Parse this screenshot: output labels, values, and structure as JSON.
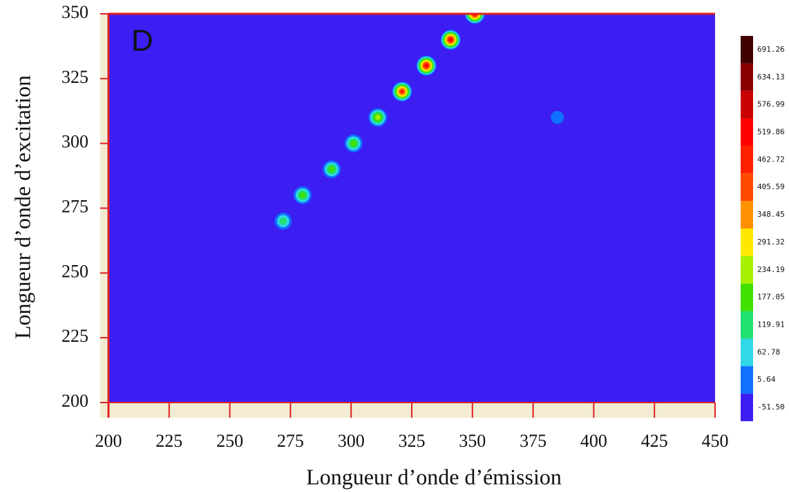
{
  "chart_data": {
    "type": "contour",
    "panel_label": "D",
    "x_label": "Longueur d’onde d’émission",
    "y_label": "Longueur d’onde d’excitation",
    "xlim": [
      200,
      450
    ],
    "xticks": [
      200,
      225,
      250,
      275,
      300,
      325,
      350,
      375,
      400,
      425,
      450
    ],
    "ylim": [
      200,
      350
    ],
    "yticks": [
      200,
      225,
      250,
      275,
      300,
      325,
      350
    ],
    "background_color": "#3c1ef2",
    "spots": {
      "x": [
        272,
        280,
        292,
        301,
        311,
        321,
        331,
        341,
        351,
        385
      ],
      "y": [
        270,
        280,
        290,
        300,
        310,
        320,
        330,
        340,
        350,
        310
      ],
      "values": [
        150,
        190,
        210,
        230,
        290,
        500,
        520,
        540,
        560,
        40
      ]
    },
    "colorbar": {
      "levels": [
        691.26,
        634.13,
        576.99,
        519.86,
        462.72,
        405.59,
        348.45,
        291.32,
        234.19,
        177.05,
        119.91,
        62.78,
        5.64,
        {
          "value": -51.5,
          "label": "-51.50"
        }
      ],
      "colors": [
        "#400000",
        "#8a0000",
        "#c80000",
        "#ff0000",
        "#ff2000",
        "#ff4a00",
        "#ff9000",
        "#ffe800",
        "#a8f000",
        "#40e000",
        "#20e070",
        "#30d8e8",
        "#1070ff",
        "#3c1ef2"
      ]
    }
  }
}
